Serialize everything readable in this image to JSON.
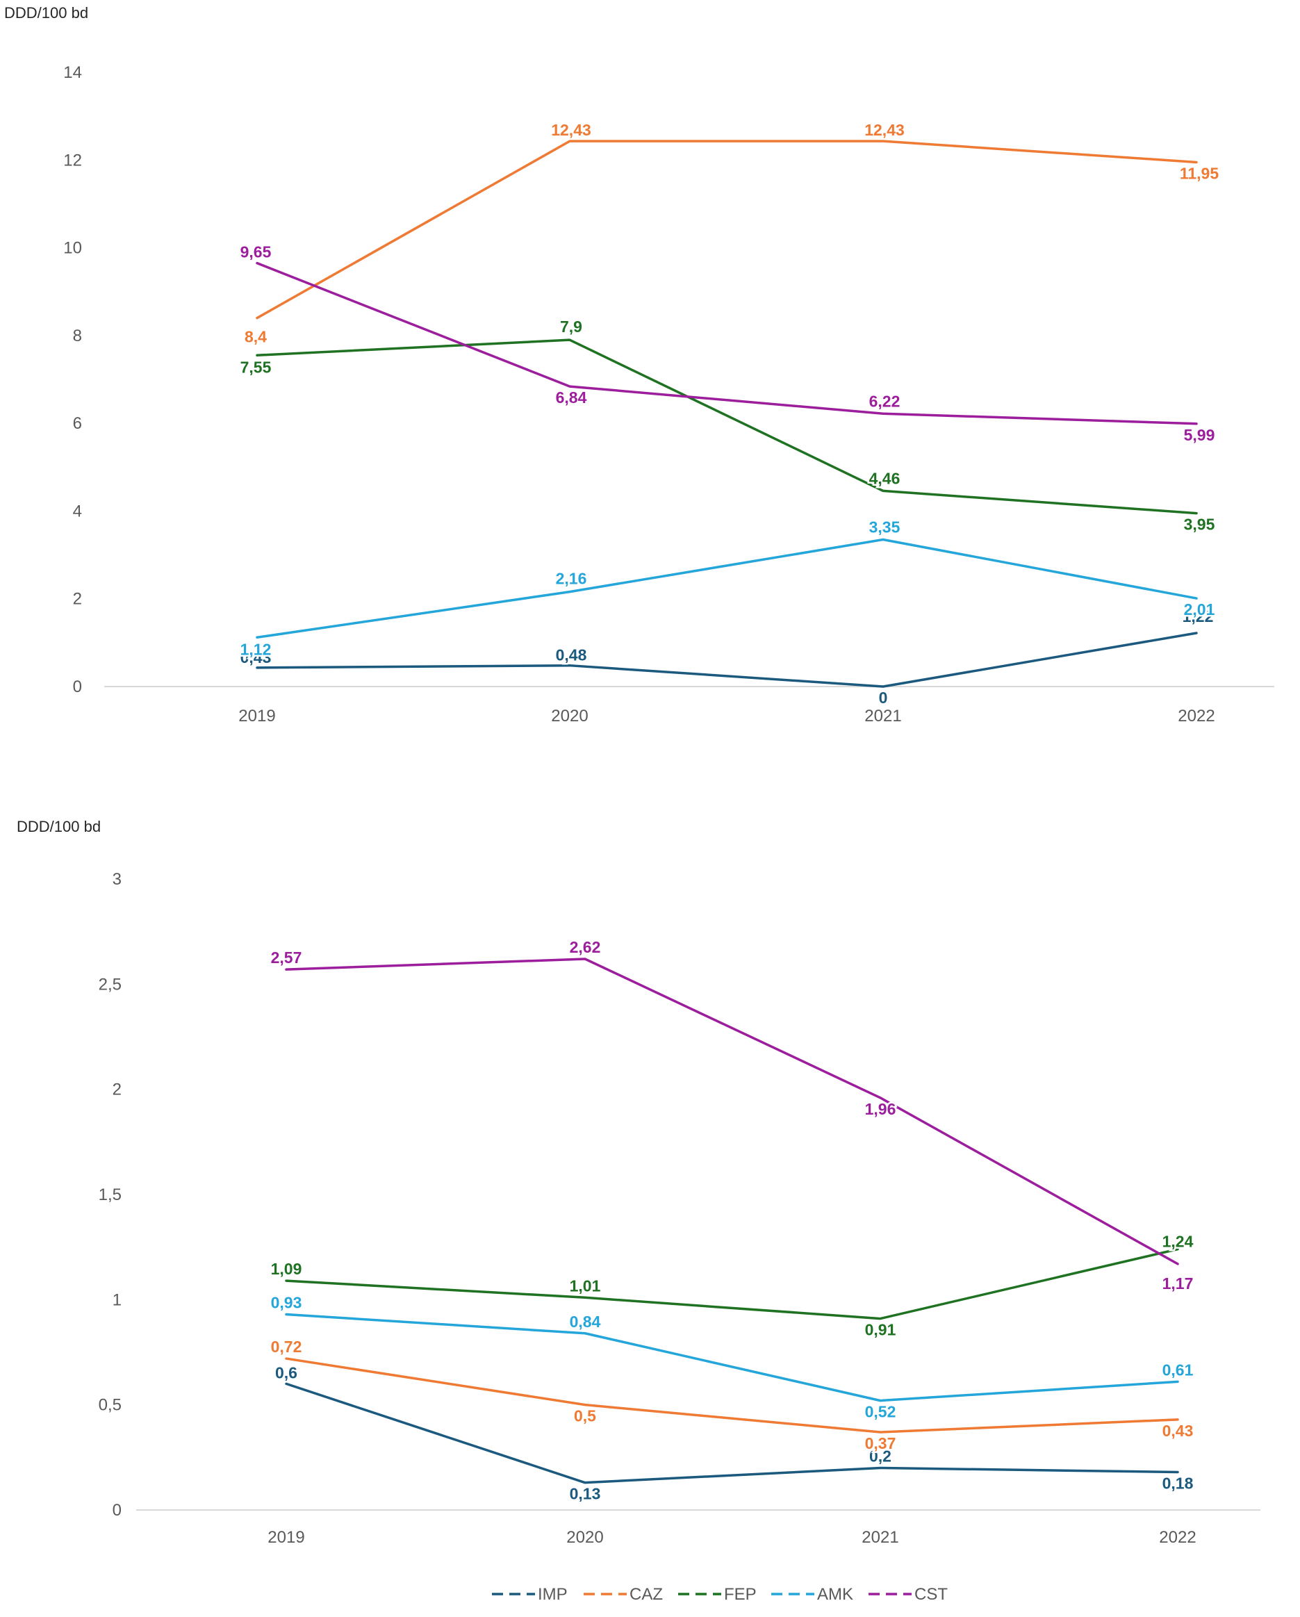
{
  "colors": {
    "IMP": "#1b5a7e",
    "CAZ": "#ee7a33",
    "FEP": "#1f7222",
    "AMK": "#24a6da",
    "CST": "#9c1e9c",
    "axis": "#d9d9d9",
    "tick": "#595959"
  },
  "legend": [
    {
      "key": "IMP",
      "label": "IMP"
    },
    {
      "key": "CAZ",
      "label": "CAZ"
    },
    {
      "key": "FEP",
      "label": "FEP"
    },
    {
      "key": "AMK",
      "label": "AMK"
    },
    {
      "key": "CST",
      "label": "CST"
    }
  ],
  "chart_data": [
    {
      "type": "line",
      "ylabel": "DDD/100 bd",
      "categories": [
        "2019",
        "2020",
        "2021",
        "2022"
      ],
      "ylim": [
        0,
        14
      ],
      "yticks": [
        0,
        2,
        4,
        6,
        8,
        10,
        12,
        14
      ],
      "ytick_labels": [
        "0",
        "2",
        "4",
        "6",
        "8",
        "10",
        "12",
        "14"
      ],
      "series": [
        {
          "name": "IMP",
          "values": [
            0.43,
            0.48,
            0,
            1.22
          ],
          "labels": [
            "0,43",
            "0,48",
            "0",
            "1,22"
          ]
        },
        {
          "name": "CAZ",
          "values": [
            8.4,
            12.43,
            12.43,
            11.95
          ],
          "labels": [
            "8,4",
            "12,43",
            "12,43",
            "11,95"
          ]
        },
        {
          "name": "FEP",
          "values": [
            7.55,
            7.9,
            4.46,
            3.95
          ],
          "labels": [
            "7,55",
            "7,9",
            "4,46",
            "3,95"
          ]
        },
        {
          "name": "AMK",
          "values": [
            1.12,
            2.16,
            3.35,
            2.01
          ],
          "labels": [
            "1,12",
            "2,16",
            "3,35",
            "2,01"
          ]
        },
        {
          "name": "CST",
          "values": [
            9.65,
            6.84,
            6.22,
            5.99
          ],
          "labels": [
            "9,65",
            "6,84",
            "6,22",
            "5,99"
          ]
        }
      ]
    },
    {
      "type": "line",
      "ylabel": "DDD/100 bd",
      "categories": [
        "2019",
        "2020",
        "2021",
        "2022"
      ],
      "ylim": [
        0,
        3
      ],
      "yticks": [
        0,
        0.5,
        1,
        1.5,
        2,
        2.5,
        3
      ],
      "ytick_labels": [
        "0",
        "0,5",
        "1",
        "1,5",
        "2",
        "2,5",
        "3"
      ],
      "series": [
        {
          "name": "IMP",
          "values": [
            0.6,
            0.13,
            0.2,
            0.18
          ],
          "labels": [
            "0,6",
            "0,13",
            "0,2",
            "0,18"
          ]
        },
        {
          "name": "CAZ",
          "values": [
            0.72,
            0.5,
            0.37,
            0.43
          ],
          "labels": [
            "0,72",
            "0,5",
            "0,37",
            "0,43"
          ]
        },
        {
          "name": "FEP",
          "values": [
            1.09,
            1.01,
            0.91,
            1.24
          ],
          "labels": [
            "1,09",
            "1,01",
            "0,91",
            "1,24"
          ]
        },
        {
          "name": "AMK",
          "values": [
            0.93,
            0.84,
            0.52,
            0.61
          ],
          "labels": [
            "0,93",
            "0,84",
            "0,52",
            "0,61"
          ]
        },
        {
          "name": "CST",
          "values": [
            2.57,
            2.62,
            1.96,
            1.17
          ],
          "labels": [
            "2,57",
            "2,62",
            "1,96",
            "1,17"
          ]
        }
      ]
    }
  ]
}
